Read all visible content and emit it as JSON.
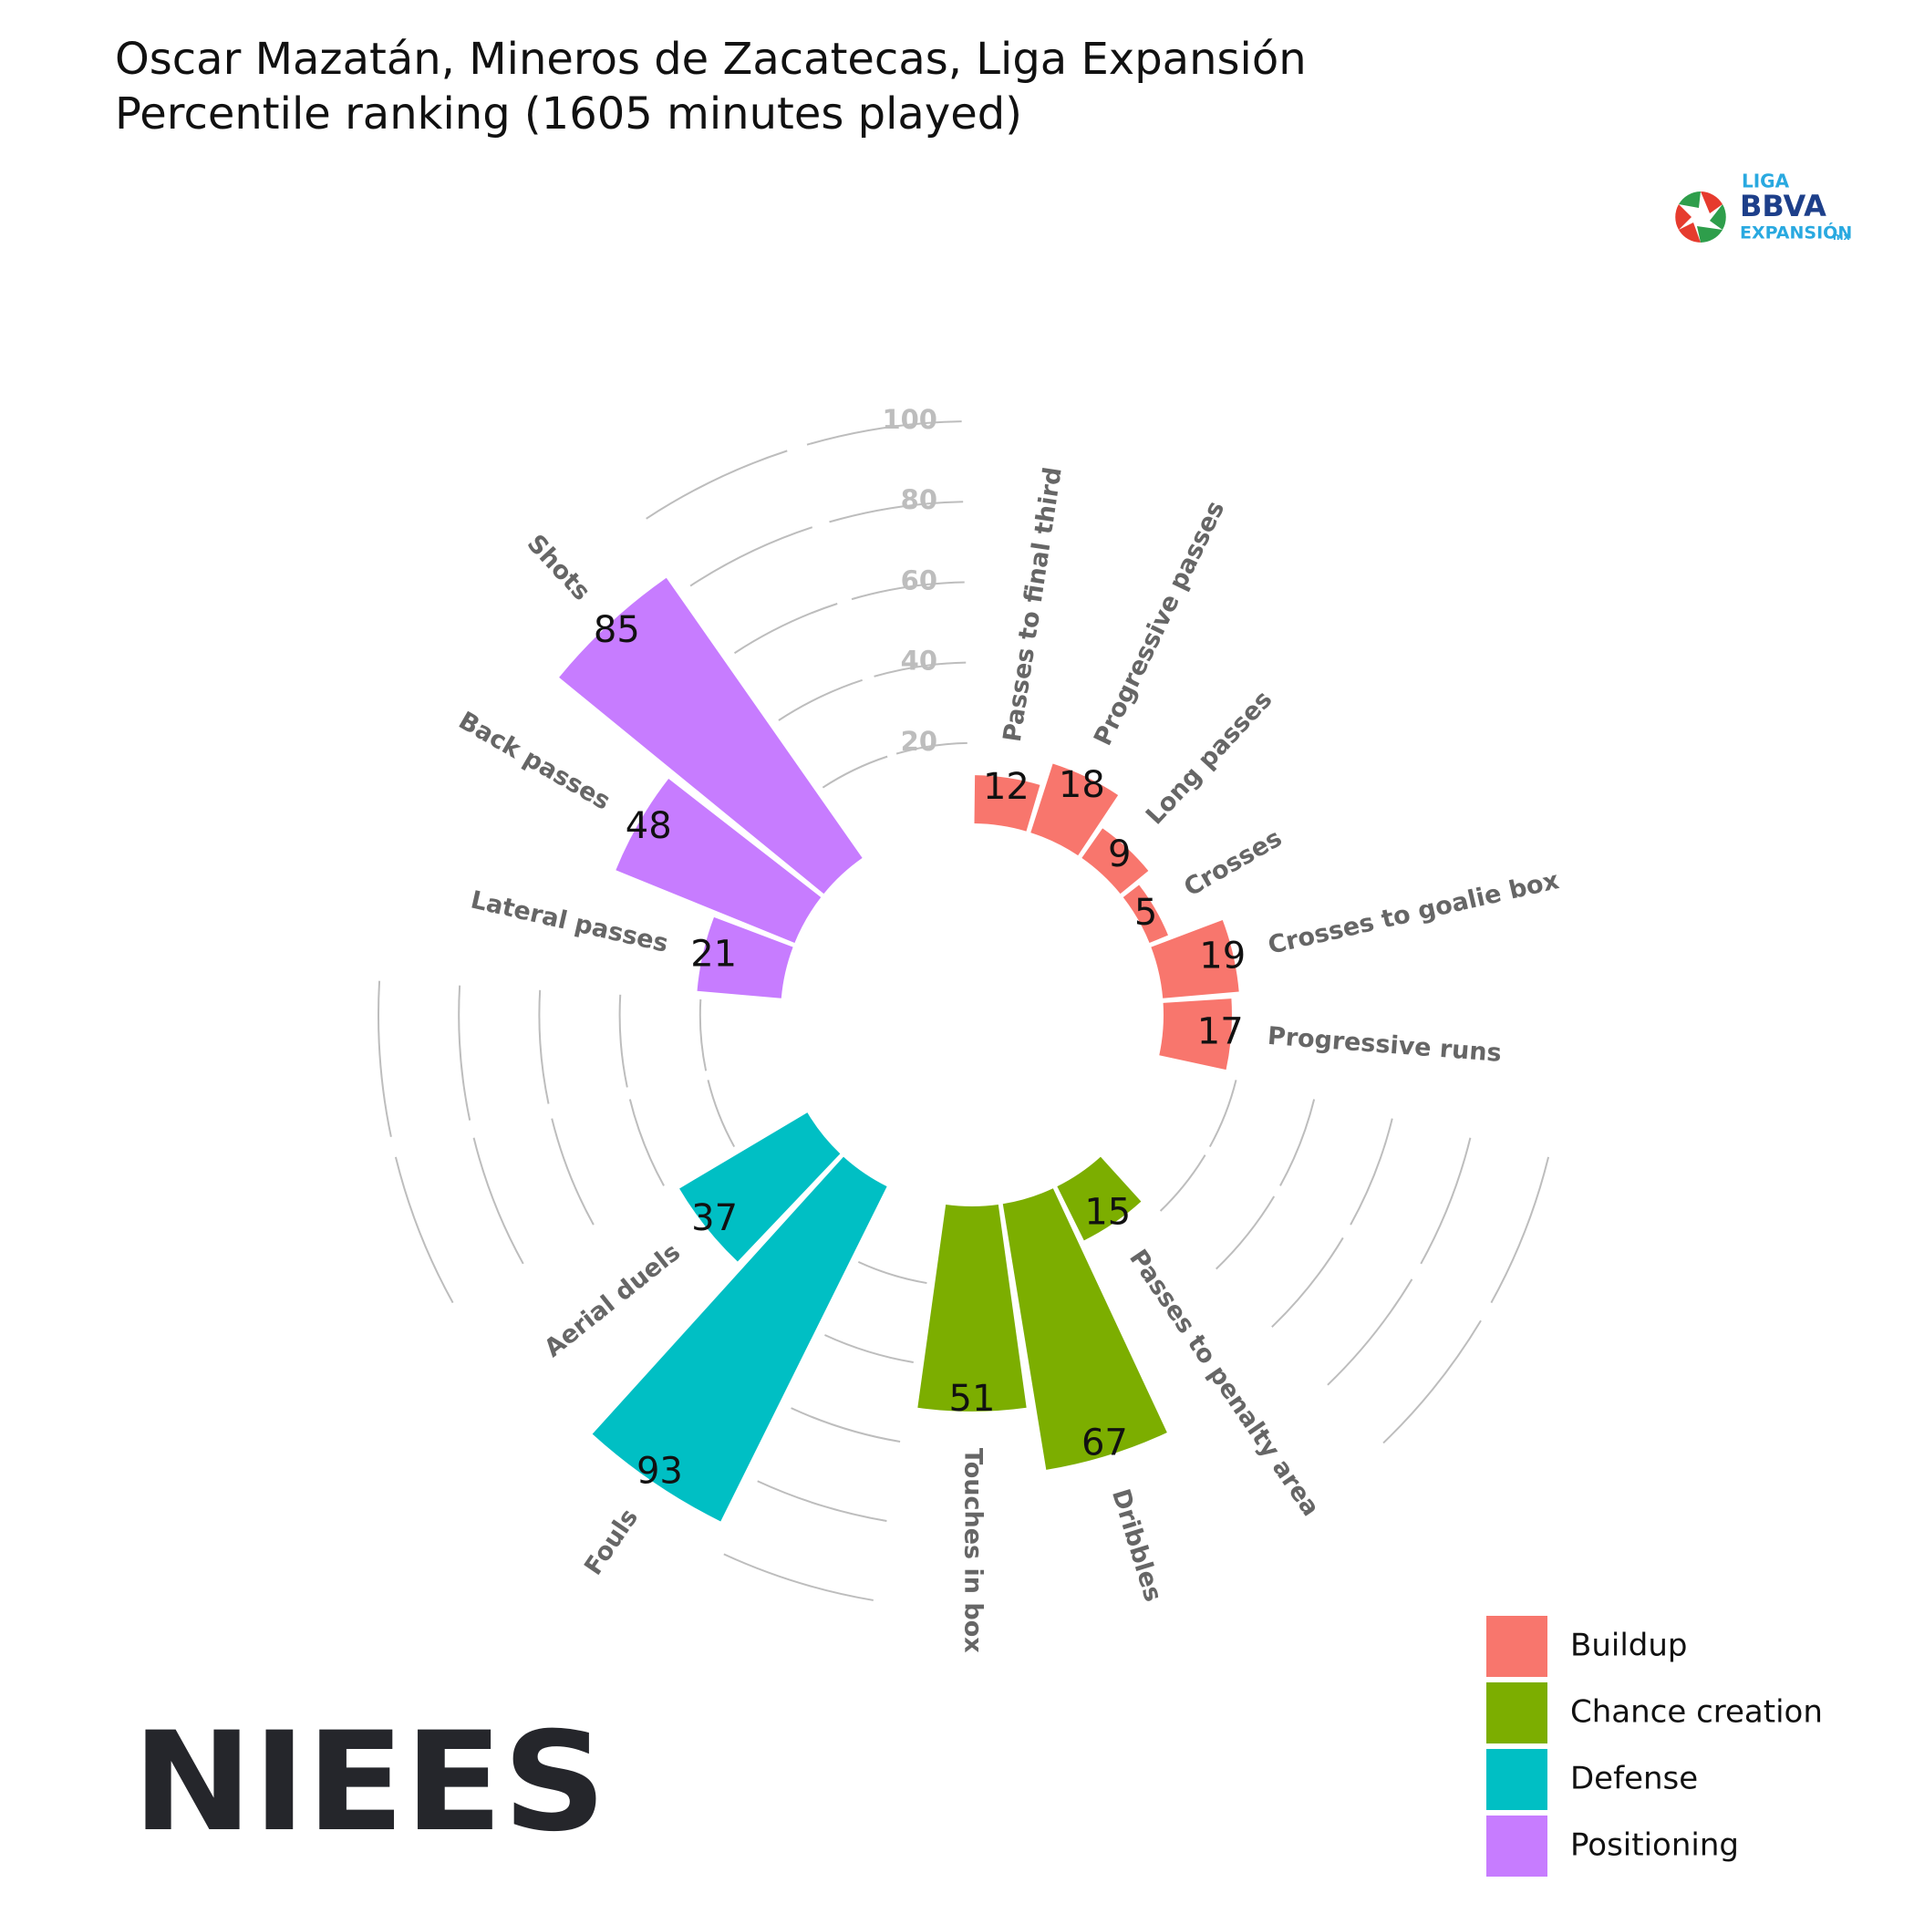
{
  "chart_data": {
    "type": "polar_bar",
    "title": "Oscar Mazatán, Mineros de Zacatecas, Liga Expansión",
    "subtitle": "Percentile ranking (1605 minutes played)",
    "ylim": [
      0,
      100
    ],
    "yticks": [
      20,
      40,
      60,
      80,
      100
    ],
    "series": [
      {
        "name": "Buildup",
        "color": "#f8766d",
        "categories": [
          "Passes to final third",
          "Progressive passes",
          "Long passes",
          "Crosses",
          "Crosses to goalie box",
          "Progressive runs"
        ],
        "values": [
          12,
          18,
          9,
          5,
          19,
          17
        ]
      },
      {
        "name": "Chance creation",
        "color": "#7cae00",
        "categories": [
          "Passes to penalty area",
          "Dribbles",
          "Touches in box"
        ],
        "values": [
          15,
          67,
          51
        ]
      },
      {
        "name": "Defense",
        "color": "#00bfc4",
        "categories": [
          "Fouls",
          "Aerial duels"
        ],
        "values": [
          93,
          37
        ]
      },
      {
        "name": "Positioning",
        "color": "#c77cff",
        "categories": [
          "Lateral passes",
          "Back passes",
          "Shots"
        ],
        "values": [
          21,
          48,
          85
        ]
      }
    ],
    "logo_texts": [
      "LIGA",
      "BBVA",
      "EXPANSIÓN",
      "mx"
    ],
    "brand": "NIEES"
  }
}
